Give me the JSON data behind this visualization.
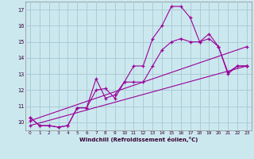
{
  "xlabel": "Windchill (Refroidissement éolien,°C)",
  "background_color": "#cce8ef",
  "grid_color": "#aaccd6",
  "line_color": "#990099",
  "x_data": [
    0,
    1,
    2,
    3,
    4,
    5,
    6,
    7,
    8,
    9,
    10,
    11,
    12,
    13,
    14,
    15,
    16,
    17,
    18,
    19,
    20,
    21,
    22,
    23
  ],
  "series1": [
    10.3,
    9.8,
    9.8,
    9.7,
    9.8,
    10.9,
    10.9,
    12.7,
    11.5,
    11.7,
    12.5,
    13.5,
    13.5,
    15.2,
    16.0,
    17.2,
    17.2,
    16.5,
    15.0,
    15.5,
    14.7,
    13.0,
    13.5,
    13.5
  ],
  "series2": [
    10.3,
    9.8,
    9.8,
    9.7,
    9.8,
    10.9,
    10.9,
    12.0,
    12.1,
    11.5,
    12.5,
    12.5,
    12.5,
    13.5,
    14.5,
    15.0,
    15.2,
    15.0,
    15.0,
    15.2,
    14.7,
    13.1,
    13.5,
    13.5
  ],
  "series3_x": [
    0,
    23
  ],
  "series3_y": [
    10.1,
    14.7
  ],
  "series4_x": [
    0,
    23
  ],
  "series4_y": [
    9.8,
    13.5
  ],
  "ylim": [
    9.5,
    17.5
  ],
  "xlim": [
    -0.5,
    23.5
  ],
  "yticks": [
    10,
    11,
    12,
    13,
    14,
    15,
    16,
    17
  ],
  "xticks": [
    0,
    1,
    2,
    3,
    4,
    5,
    6,
    7,
    8,
    9,
    10,
    11,
    12,
    13,
    14,
    15,
    16,
    17,
    18,
    19,
    20,
    21,
    22,
    23
  ]
}
